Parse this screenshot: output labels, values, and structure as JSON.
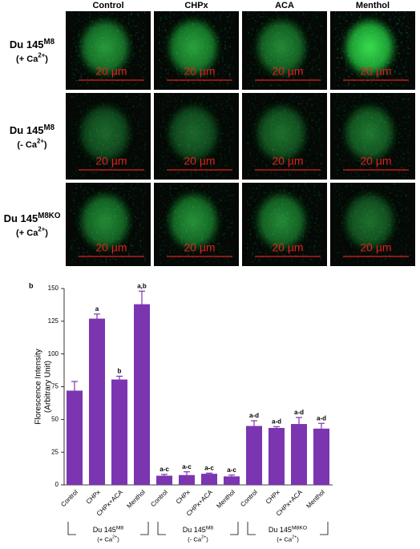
{
  "panel_a": {
    "columns": [
      "Control",
      "CHPx",
      "ACA",
      "Menthol"
    ],
    "rows": [
      {
        "cell_line": "Du 145",
        "variant": "M8",
        "condition": "(+ Ca",
        "condition_sup": "2+",
        "condition_end": ")"
      },
      {
        "cell_line": "Du 145",
        "variant": "M8",
        "condition": "(- Ca",
        "condition_sup": "2+",
        "condition_end": ")"
      },
      {
        "cell_line": "Du 145",
        "variant": "M8KO",
        "condition": "(+ Ca",
        "condition_sup": "2+",
        "condition_end": ")"
      }
    ],
    "scale_bar": "20 µm"
  },
  "chart_data": {
    "type": "bar",
    "panel_label": "b",
    "ylabel": "Florescence Intensity",
    "ylabel_2": "(Arbitrary Unit)",
    "categories": [
      "Control",
      "CHPx",
      "CHPx+ACA",
      "Menthol",
      "Control",
      "CHPx",
      "CHPx+ACA",
      "Menthol",
      "Control",
      "CHPx",
      "CHPx+ACA",
      "Menthol"
    ],
    "values": [
      72,
      127,
      80.5,
      138,
      7,
      7.5,
      8.5,
      6.5,
      45,
      43.5,
      46.5,
      43
    ],
    "errors": [
      7,
      3.5,
      2.5,
      10,
      1,
      2.5,
      0.5,
      1,
      4,
      1,
      5,
      4
    ],
    "significance": [
      null,
      "a",
      "b",
      "a,b",
      "a-c",
      "a-c",
      "a-c",
      "a-c",
      "a-d",
      "a-d",
      "a-d",
      "a-d"
    ],
    "groups": [
      {
        "cell_line": "Du 145",
        "variant": "M8",
        "condition": "(+ Ca",
        "condition_sup": "2+",
        "condition_end": ")"
      },
      {
        "cell_line": "Du 145",
        "variant": "M8",
        "condition": "(- Ca",
        "condition_sup": "2+",
        "condition_end": ")"
      },
      {
        "cell_line": "Du 145",
        "variant": "M8KO",
        "condition": "(+ Ca",
        "condition_sup": "2+",
        "condition_end": ")"
      }
    ],
    "color": "#7b35b0",
    "ylim": [
      0,
      150
    ],
    "yticks": [
      0,
      25,
      50,
      75,
      100,
      125,
      150
    ]
  }
}
